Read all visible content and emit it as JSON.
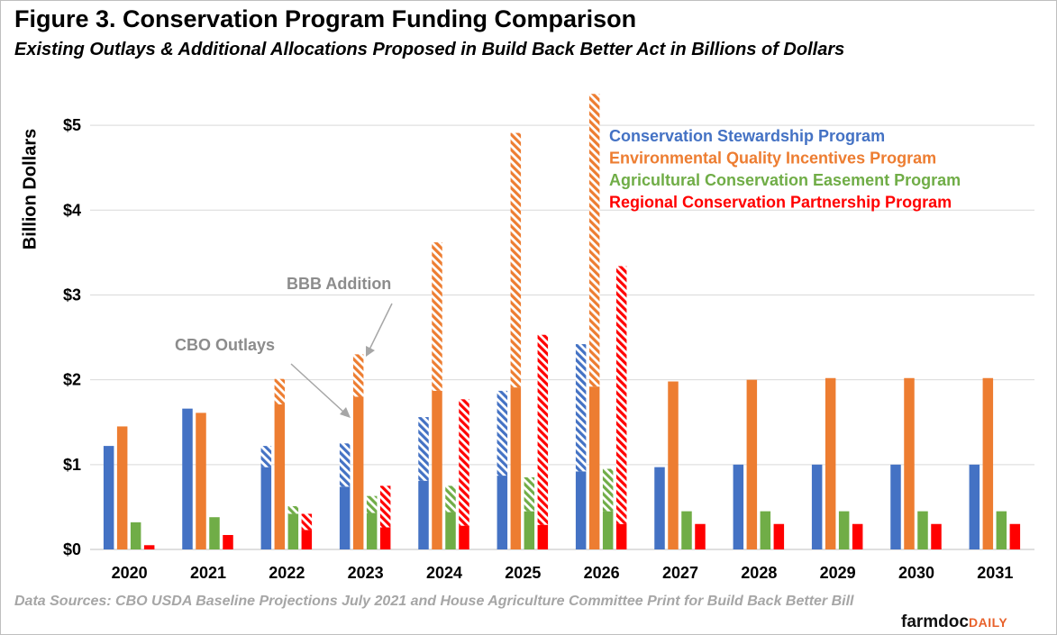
{
  "title": "Figure 3. Conservation Program Funding Comparison",
  "subtitle": "Existing Outlays & Additional Allocations Proposed in Build Back Better Act in Billions of Dollars",
  "source": "Data Sources: CBO USDA Baseline Projections July 2021 and House Agriculture Committee Print for Build Back Better Bill",
  "logo": {
    "main": "farmdoc",
    "accent": "DAILY"
  },
  "annotations": {
    "bbb": "BBB Addition",
    "cbo": "CBO Outlays"
  },
  "chart_data": {
    "type": "bar",
    "stacked": true,
    "ylabel": "Billion Dollars",
    "ylim": [
      0,
      5.5
    ],
    "yticks": [
      0,
      1,
      2,
      3,
      4,
      5
    ],
    "ytick_labels": [
      "$0",
      "$1",
      "$2",
      "$3",
      "$4",
      "$5"
    ],
    "grid": true,
    "legend_position": "top-right",
    "categories": [
      "2020",
      "2021",
      "2022",
      "2023",
      "2024",
      "2025",
      "2026",
      "2027",
      "2028",
      "2029",
      "2030",
      "2031"
    ],
    "series": [
      {
        "name": "Conservation Stewardship Program",
        "color": "#4472c4",
        "cbo_outlays": [
          1.22,
          1.66,
          0.97,
          0.74,
          0.81,
          0.87,
          0.92,
          0.97,
          1.0,
          1.0,
          1.0,
          1.0
        ],
        "bbb_addition": [
          0,
          0,
          0.25,
          0.51,
          0.75,
          1.0,
          1.5,
          0,
          0,
          0,
          0,
          0
        ]
      },
      {
        "name": "Environmental Quality Incentives Program",
        "color": "#ed7d31",
        "cbo_outlays": [
          1.45,
          1.61,
          1.71,
          1.8,
          1.87,
          1.91,
          1.92,
          1.98,
          2.0,
          2.02,
          2.02,
          2.02
        ],
        "bbb_addition": [
          0,
          0,
          0.3,
          0.5,
          1.75,
          3.0,
          3.45,
          0,
          0,
          0,
          0,
          0
        ]
      },
      {
        "name": "Agricultural Conservation Easement Program",
        "color": "#70ad47",
        "cbo_outlays": [
          0.32,
          0.38,
          0.42,
          0.43,
          0.44,
          0.45,
          0.45,
          0.45,
          0.45,
          0.45,
          0.45,
          0.45
        ],
        "bbb_addition": [
          0,
          0,
          0.09,
          0.2,
          0.31,
          0.4,
          0.5,
          0,
          0,
          0,
          0,
          0
        ]
      },
      {
        "name": "Regional Conservation Partnership Program",
        "color": "#ff0000",
        "cbo_outlays": [
          0.05,
          0.17,
          0.23,
          0.26,
          0.28,
          0.29,
          0.3,
          0.3,
          0.3,
          0.3,
          0.3,
          0.3
        ],
        "bbb_addition": [
          0,
          0,
          0.19,
          0.49,
          1.49,
          2.24,
          3.04,
          0,
          0,
          0,
          0,
          0
        ]
      }
    ]
  }
}
